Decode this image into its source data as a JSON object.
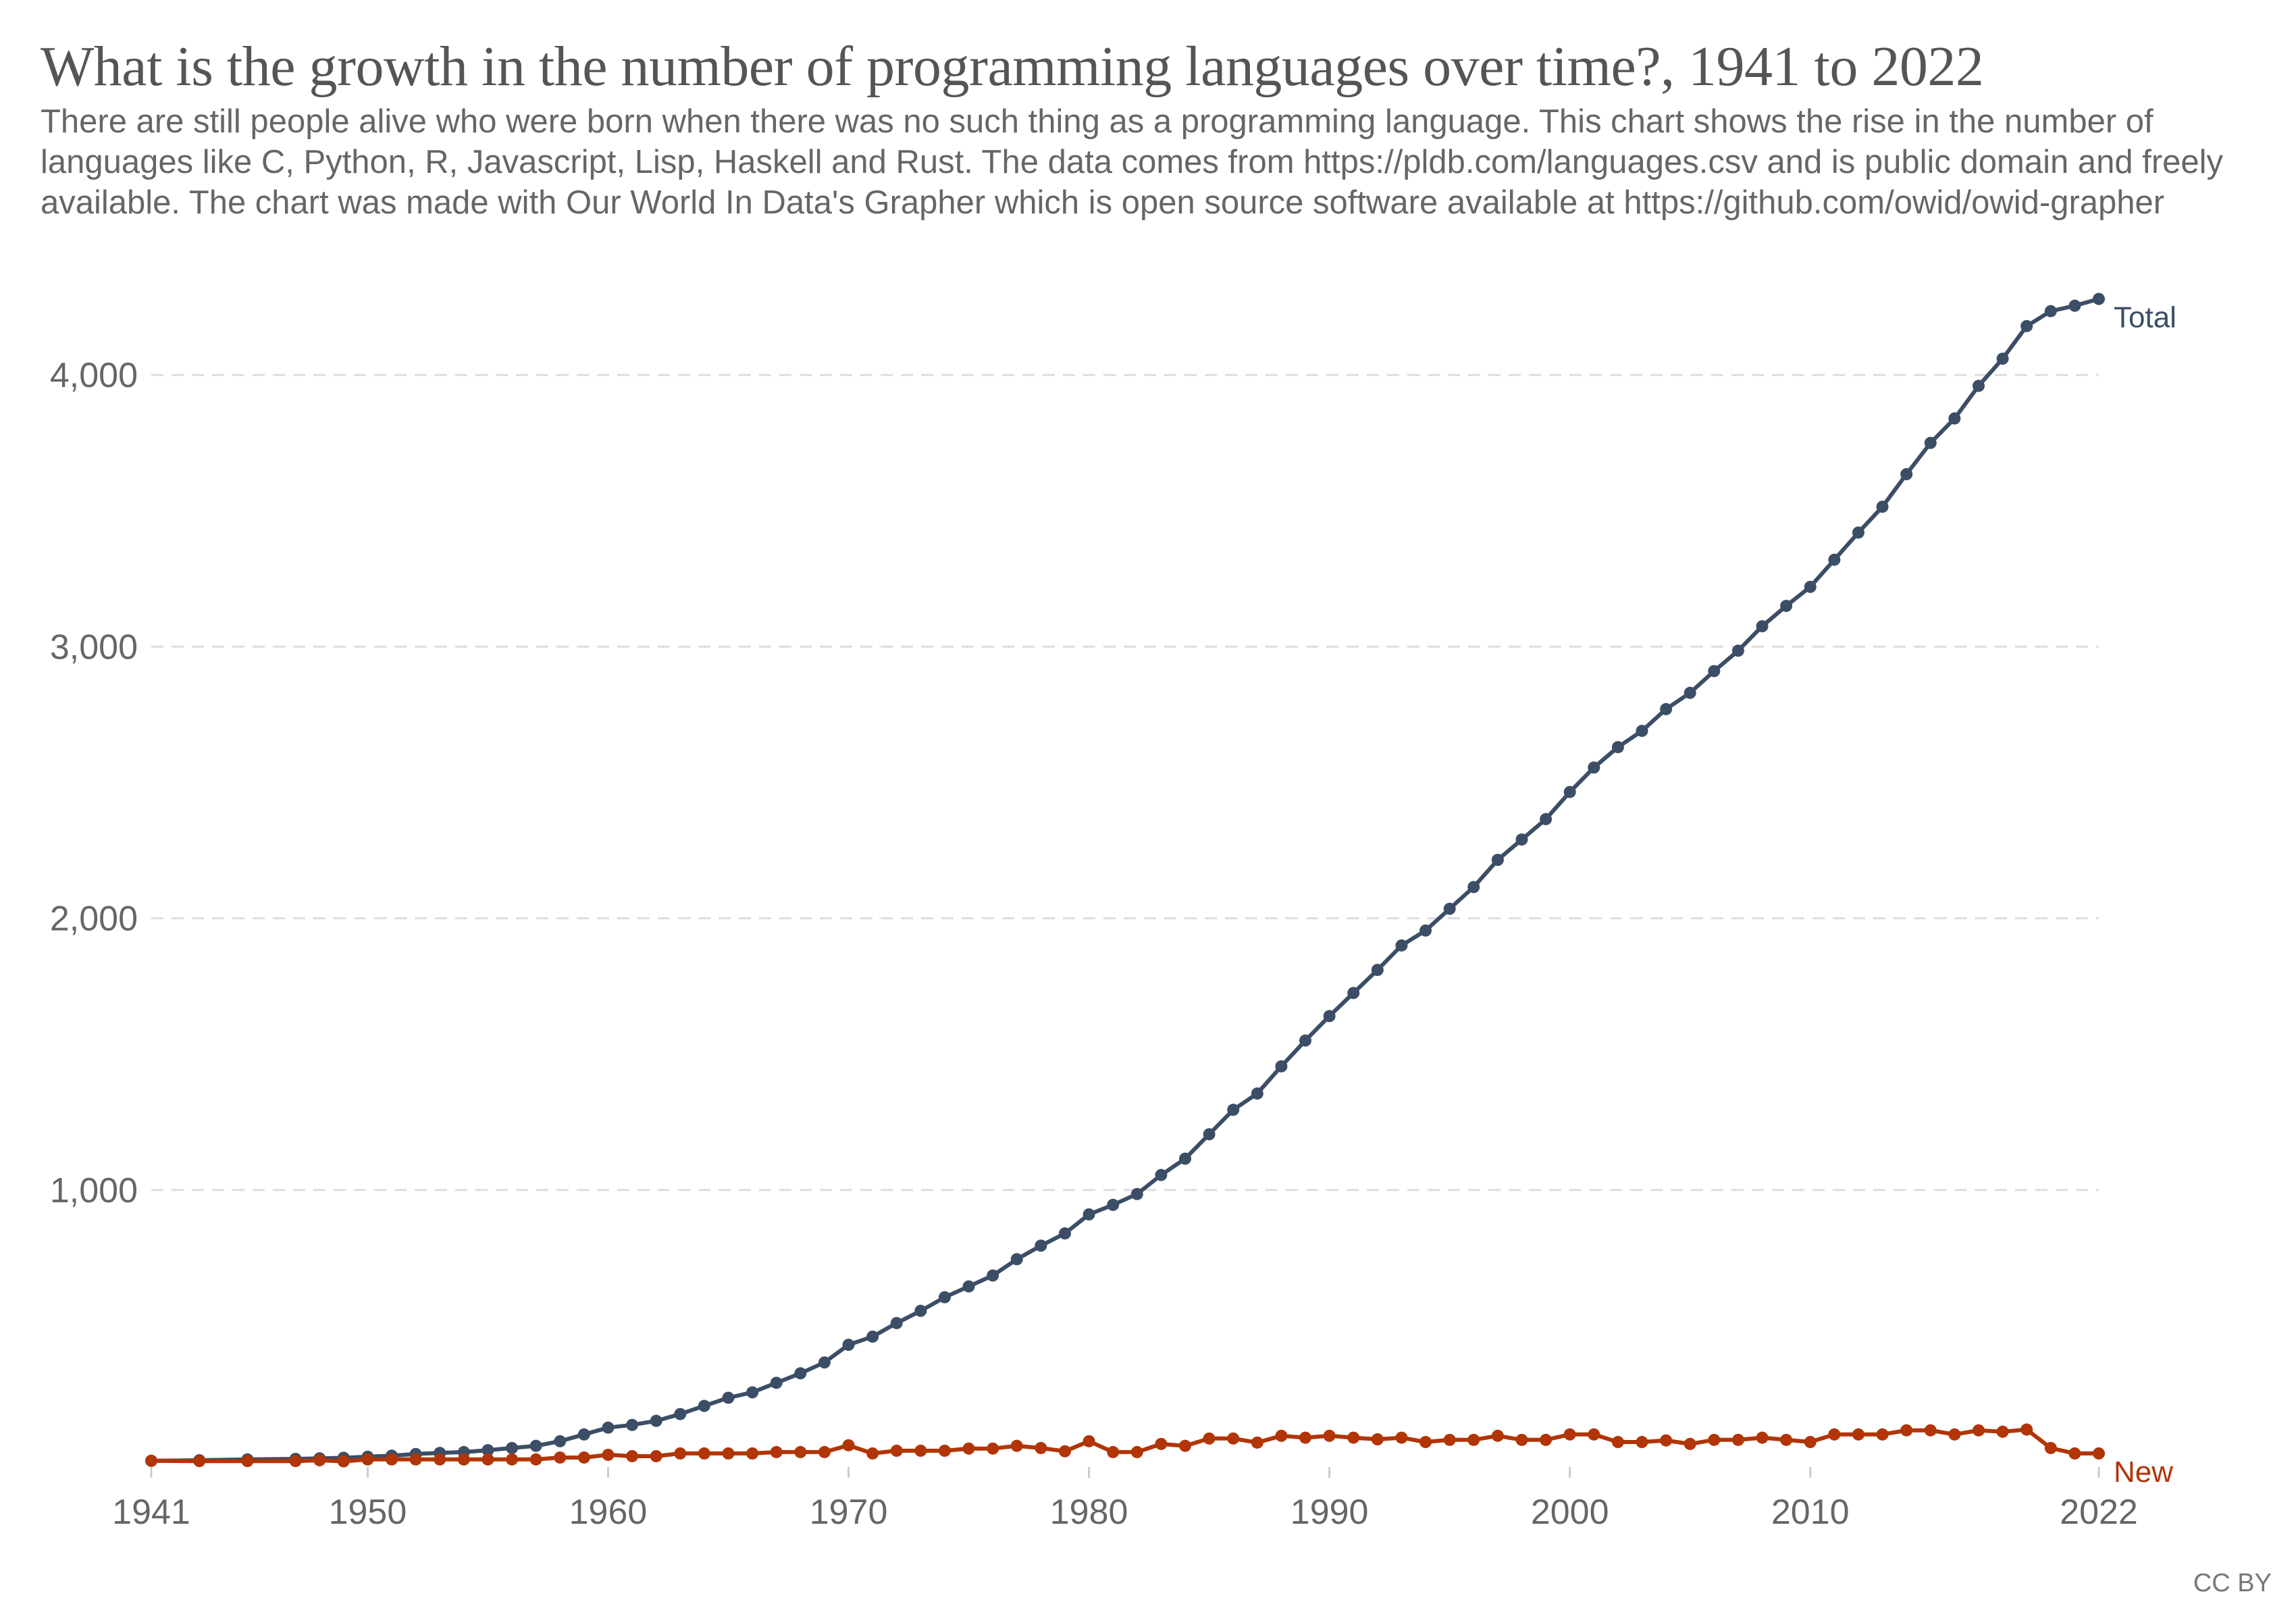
{
  "header": {
    "title": "What is the growth in the number of programming languages over time?, 1941 to 2022",
    "subtitle": "There are still people alive who were born when there was no such thing as a programming language. This chart shows the rise in the number of languages like C, Python, R, Javascript, Lisp, Haskell and Rust. The data comes from https://pldb.com/languages.csv and is public domain and freely available. The chart was made with Our World In Data's Grapher which is open source software available at https://github.com/owid/owid-grapher"
  },
  "footer": {
    "license": "CC BY"
  },
  "chart_data": {
    "type": "line",
    "title": "What is the growth in the number of programming languages over time?, 1941 to 2022",
    "xlabel": "",
    "ylabel": "",
    "xlim": [
      1941,
      2022
    ],
    "ylim": [
      0,
      4300
    ],
    "grid": "horizontal-dashed",
    "legend": "inline-right",
    "x_ticks": [
      1941,
      1950,
      1960,
      1970,
      1980,
      1990,
      2000,
      2010,
      2022
    ],
    "x_tick_labels": [
      "1941",
      "1950",
      "1960",
      "1970",
      "1980",
      "1990",
      "2000",
      "2010",
      "2022"
    ],
    "y_ticks": [
      1000,
      2000,
      3000,
      4000
    ],
    "y_tick_labels": [
      "1,000",
      "2,000",
      "3,000",
      "4,000"
    ],
    "x": [
      1941,
      1943,
      1945,
      1947,
      1948,
      1949,
      1950,
      1951,
      1952,
      1953,
      1954,
      1955,
      1956,
      1957,
      1958,
      1959,
      1960,
      1961,
      1962,
      1963,
      1964,
      1965,
      1966,
      1967,
      1968,
      1969,
      1970,
      1971,
      1972,
      1973,
      1974,
      1975,
      1976,
      1977,
      1978,
      1979,
      1980,
      1981,
      1982,
      1983,
      1984,
      1985,
      1986,
      1987,
      1988,
      1989,
      1990,
      1991,
      1992,
      1993,
      1994,
      1995,
      1996,
      1997,
      1998,
      1999,
      2000,
      2001,
      2002,
      2003,
      2004,
      2005,
      2006,
      2007,
      2008,
      2009,
      2010,
      2011,
      2012,
      2013,
      2014,
      2015,
      2016,
      2017,
      2018,
      2019,
      2020,
      2021,
      2022
    ],
    "series": [
      {
        "name": "Total",
        "color": "#3c4e66",
        "values": [
          3,
          5,
          8,
          10,
          12,
          14,
          18,
          22,
          28,
          32,
          35,
          42,
          50,
          58,
          75,
          100,
          125,
          135,
          150,
          175,
          205,
          235,
          255,
          290,
          325,
          365,
          430,
          460,
          510,
          555,
          605,
          645,
          685,
          745,
          795,
          840,
          910,
          945,
          985,
          1055,
          1115,
          1205,
          1295,
          1355,
          1455,
          1550,
          1640,
          1725,
          1810,
          1900,
          1955,
          2035,
          2115,
          2215,
          2290,
          2365,
          2465,
          2555,
          2630,
          2690,
          2770,
          2830,
          2910,
          2985,
          3075,
          3150,
          3220,
          3320,
          3420,
          3515,
          3635,
          3750,
          3840,
          3960,
          4060,
          4180,
          4235,
          4255,
          4280
        ]
      },
      {
        "name": "New",
        "color": "#b13507",
        "values": [
          3,
          2,
          2,
          2,
          5,
          1,
          8,
          8,
          8,
          8,
          8,
          8,
          8,
          8,
          15,
          15,
          25,
          20,
          20,
          30,
          30,
          30,
          30,
          35,
          35,
          35,
          60,
          30,
          40,
          40,
          40,
          48,
          48,
          58,
          50,
          38,
          75,
          35,
          35,
          65,
          58,
          85,
          85,
          70,
          95,
          88,
          95,
          88,
          82,
          88,
          72,
          80,
          80,
          95,
          80,
          80,
          100,
          100,
          72,
          72,
          78,
          65,
          80,
          80,
          88,
          80,
          72,
          100,
          100,
          100,
          115,
          115,
          100,
          115,
          110,
          118,
          50,
          30,
          30
        ]
      }
    ]
  }
}
